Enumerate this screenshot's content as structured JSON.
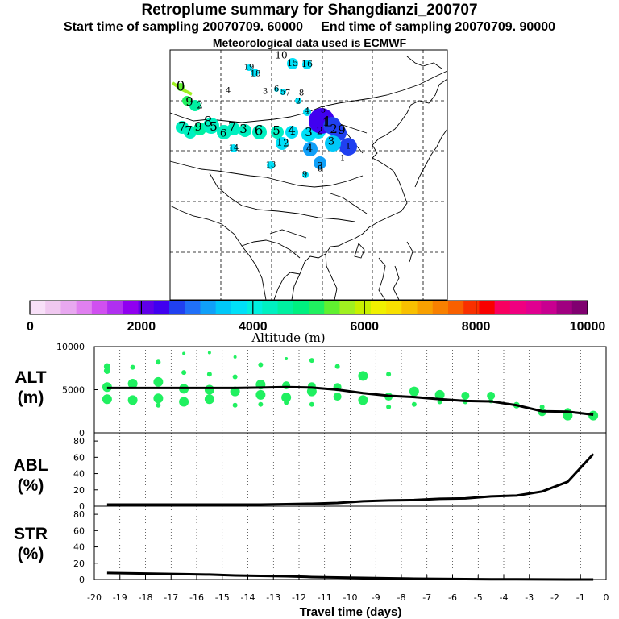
{
  "title": "Retroplume summary for Shangdianzi_200707",
  "subtitle": "Start time of sampling 20070709. 60000     End time of sampling 20070709. 90000",
  "met_line": "Meteorological data used is ECMWF",
  "colorbar": {
    "label": "Altitude (m)",
    "ticks": [
      "0",
      "2000",
      "4000",
      "6000",
      "8000",
      "10000"
    ],
    "colors": [
      "#f8e0f8",
      "#f0c8f0",
      "#e8a8f0",
      "#e080f0",
      "#d050f0",
      "#b030f0",
      "#9000f0",
      "#6000e8",
      "#4000f0",
      "#2040f0",
      "#2070f8",
      "#10a0f8",
      "#00c8f8",
      "#00e0f8",
      "#00f0e0",
      "#00f0c0",
      "#00f0a0",
      "#00f080",
      "#20f060",
      "#60f030",
      "#a0f020",
      "#c8f000",
      "#f0f000",
      "#f8e000",
      "#f8c000",
      "#f8a000",
      "#f88000",
      "#f86000",
      "#f83000",
      "#f80000",
      "#f80060",
      "#f00080",
      "#e00090",
      "#c80090",
      "#a00080",
      "#800070"
    ]
  },
  "map": {
    "labels": [
      {
        "text": "10",
        "size": 12,
        "color": "#000"
      },
      {
        "text": "15",
        "size": 11,
        "color": "#000"
      },
      {
        "text": "16",
        "size": 11,
        "color": "#000"
      },
      {
        "text": "19",
        "size": 10,
        "color": "#000"
      },
      {
        "text": "18",
        "size": 10,
        "color": "#000"
      },
      {
        "text": "4",
        "size": 10,
        "color": "#000"
      },
      {
        "text": "3",
        "size": 10,
        "color": "#000"
      },
      {
        "text": "6",
        "size": 10,
        "color": "#000"
      },
      {
        "text": "5",
        "size": 10,
        "color": "#000"
      },
      {
        "text": "7",
        "size": 10,
        "color": "#000"
      },
      {
        "text": "8",
        "size": 10,
        "color": "#000"
      },
      {
        "text": "2",
        "size": 10,
        "color": "#000"
      },
      {
        "text": "0",
        "size": 17,
        "color": "#000"
      },
      {
        "text": "9",
        "size": 15,
        "color": "#000"
      },
      {
        "text": "2",
        "size": 12,
        "color": "#000"
      },
      {
        "text": "7",
        "size": 15,
        "color": "#000"
      },
      {
        "text": "7",
        "size": 15,
        "color": "#000"
      },
      {
        "text": "9",
        "size": 15,
        "color": "#000"
      },
      {
        "text": "8",
        "size": 17,
        "color": "#000"
      },
      {
        "text": "5",
        "size": 15,
        "color": "#000"
      },
      {
        "text": "6",
        "size": 13,
        "color": "#000"
      },
      {
        "text": "7",
        "size": 16,
        "color": "#000"
      },
      {
        "text": "3",
        "size": 15,
        "color": "#000"
      },
      {
        "text": "6",
        "size": 17,
        "color": "#000"
      },
      {
        "text": "5",
        "size": 15,
        "color": "#000"
      },
      {
        "text": "4",
        "size": 15,
        "color": "#000"
      },
      {
        "text": "3",
        "size": 15,
        "color": "#000"
      },
      {
        "text": "2",
        "size": 13,
        "color": "#000"
      },
      {
        "text": "1",
        "size": 12,
        "color": "#000"
      },
      {
        "text": "1",
        "size": 12,
        "color": "#000"
      },
      {
        "text": "2",
        "size": 12,
        "color": "#000"
      },
      {
        "text": "4",
        "size": 10,
        "color": "#000"
      },
      {
        "text": "5",
        "size": 10,
        "color": "#000"
      },
      {
        "text": "3",
        "size": 13,
        "color": "#000"
      },
      {
        "text": "4",
        "size": 13,
        "color": "#000"
      },
      {
        "text": "3",
        "size": 13,
        "color": "#000"
      },
      {
        "text": "1",
        "size": 17,
        "color": "#000"
      },
      {
        "text": "2",
        "size": 15,
        "color": "#000"
      },
      {
        "text": "9",
        "size": 15,
        "color": "#000"
      },
      {
        "text": "1",
        "size": 10,
        "color": "#000"
      },
      {
        "text": "14",
        "size": 10,
        "color": "#000"
      },
      {
        "text": "13",
        "size": 10,
        "color": "#000"
      },
      {
        "text": "8",
        "size": 10,
        "color": "#000"
      },
      {
        "text": "9",
        "size": 10,
        "color": "#000"
      },
      {
        "text": "1",
        "size": 10,
        "color": "#000"
      }
    ]
  },
  "chart_data": [
    {
      "type": "scatter+line",
      "name": "ALT",
      "ylabel": "ALT\n(m)",
      "xlabel": "Travel time (days)",
      "xlim": [
        -20,
        0
      ],
      "ylim": [
        0,
        10000
      ],
      "yticks": [
        "10000",
        "5000",
        "0"
      ],
      "line": {
        "x": [
          -19.5,
          -18.5,
          -17.5,
          -16.5,
          -15.5,
          -14.5,
          -13.5,
          -12.5,
          -11.5,
          -10.5,
          -9.5,
          -8.5,
          -7.5,
          -6.5,
          -5.5,
          -4.5,
          -3.5,
          -2.5,
          -1.5,
          -0.5
        ],
        "y": [
          5200,
          5200,
          5200,
          5200,
          5200,
          5200,
          5250,
          5300,
          5250,
          5000,
          4600,
          4300,
          4150,
          3900,
          3700,
          3650,
          3200,
          2500,
          2450,
          2100
        ]
      },
      "points": {
        "x": [
          -19.5,
          -19.5,
          -19.5,
          -19.5,
          -18.5,
          -18.5,
          -18.5,
          -17.5,
          -17.5,
          -17.5,
          -17.5,
          -16.5,
          -16.5,
          -16.5,
          -16.5,
          -15.5,
          -15.5,
          -15.5,
          -15.5,
          -14.5,
          -14.5,
          -14.5,
          -14.5,
          -13.5,
          -13.5,
          -13.5,
          -13.5,
          -12.5,
          -12.5,
          -12.5,
          -12.5,
          -11.5,
          -11.5,
          -11.5,
          -11.5,
          -10.5,
          -10.5,
          -10.5,
          -9.5,
          -9.5,
          -8.5,
          -8.5,
          -8.5,
          -7.5,
          -7.5,
          -6.5,
          -6.5,
          -5.5,
          -5.5,
          -4.5,
          -4.5,
          -3.5,
          -3.5,
          -2.5,
          -2.5,
          -1.5,
          -1.5,
          -0.5
        ],
        "y": [
          3900,
          5300,
          7200,
          7700,
          3800,
          5700,
          7600,
          4000,
          5900,
          8200,
          3200,
          3600,
          5100,
          7000,
          9200,
          3900,
          5000,
          6800,
          9300,
          4800,
          3200,
          6500,
          8800,
          4400,
          5600,
          7900,
          3300,
          4100,
          5500,
          8600,
          3500,
          4800,
          5400,
          8400,
          3300,
          4200,
          5300,
          7700,
          3800,
          6600,
          4200,
          6800,
          3000,
          4800,
          3300,
          4400,
          3600,
          4300,
          3600,
          4300,
          3700,
          3200,
          3300,
          2400,
          3000,
          2000,
          2500,
          2000
        ],
        "r": [
          6,
          6,
          4,
          4,
          6,
          6,
          3,
          6,
          6,
          3,
          3,
          6,
          6,
          3,
          2,
          6,
          6,
          3,
          2,
          6,
          3,
          3,
          2,
          6,
          6,
          3,
          3,
          6,
          5,
          2,
          3,
          6,
          5,
          3,
          3,
          5,
          5,
          3,
          6,
          6,
          5,
          3,
          3,
          6,
          3,
          6,
          3,
          5,
          3,
          5,
          3,
          4,
          3,
          5,
          3,
          6,
          4,
          6
        ]
      }
    },
    {
      "type": "line",
      "name": "ABL",
      "ylabel": "ABL\n(%)",
      "xlim": [
        -20,
        0
      ],
      "ylim": [
        0,
        90
      ],
      "yticks": [
        "80",
        "60",
        "40",
        "20",
        "0"
      ],
      "x": [
        -19.5,
        -18.5,
        -17.5,
        -16.5,
        -15.5,
        -14.5,
        -13.5,
        -12.5,
        -11.5,
        -10.5,
        -9.5,
        -8.5,
        -7.5,
        -6.5,
        -5.5,
        -4.5,
        -3.5,
        -2.5,
        -1.5,
        -0.5
      ],
      "y": [
        2,
        2,
        2,
        2,
        2,
        2,
        2,
        2.5,
        3,
        4,
        6,
        7,
        7.5,
        9,
        9.5,
        12,
        13,
        18,
        30,
        64
      ]
    },
    {
      "type": "line",
      "name": "STR",
      "ylabel": "STR\n(%)",
      "xlim": [
        -20,
        0
      ],
      "ylim": [
        0,
        90
      ],
      "yticks": [
        "80",
        "60",
        "40",
        "20",
        "0"
      ],
      "xticks": [
        "-20",
        "-19",
        "-18",
        "-17",
        "-16",
        "-15",
        "-14",
        "-13",
        "-12",
        "-11",
        "-10",
        "-9",
        "-8",
        "-7",
        "-6",
        "-5",
        "-4",
        "-3",
        "-2",
        "-1",
        "0"
      ],
      "x": [
        -19.5,
        -18.5,
        -17.5,
        -16.5,
        -15.5,
        -14.5,
        -13.5,
        -12.5,
        -11.5,
        -10.5,
        -9.5,
        -8.5,
        -7.5,
        -6.5,
        -5.5,
        -4.5,
        -3.5,
        -2.5,
        -1.5,
        -0.5
      ],
      "y": [
        8,
        7.5,
        7,
        6.5,
        6,
        5,
        4.5,
        4,
        3,
        2.5,
        2,
        1.5,
        1,
        0.8,
        0.5,
        0.3,
        0.2,
        0.1,
        0,
        0
      ]
    }
  ]
}
